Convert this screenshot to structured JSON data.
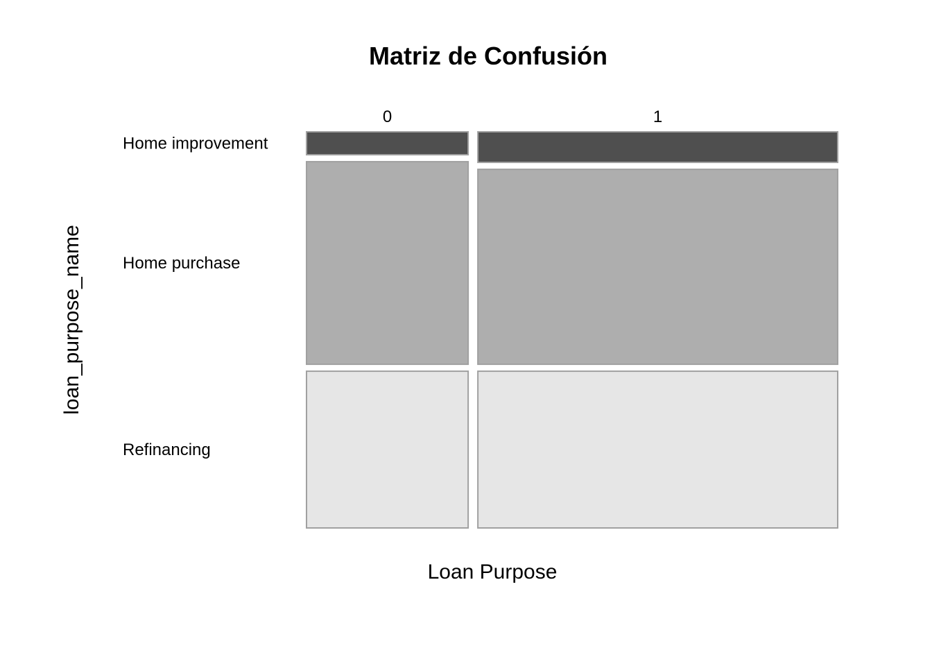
{
  "chart_data": {
    "type": "mosaic",
    "title": "Matriz de Confusión",
    "xlabel": "Loan Purpose",
    "ylabel": "loan_purpose_name",
    "columns": [
      "0",
      "1"
    ],
    "rows": [
      "Home improvement",
      "Home purchase",
      "Refinancing"
    ],
    "column_proportions": [
      0.31,
      0.69
    ],
    "cell_proportions": [
      [
        0.06,
        0.53,
        0.41
      ],
      [
        0.08,
        0.51,
        0.41
      ]
    ],
    "row_colors": [
      "#4f4f4f",
      "#aeaeae",
      "#e6e6e6"
    ],
    "border_color": "#a0a0a0"
  }
}
